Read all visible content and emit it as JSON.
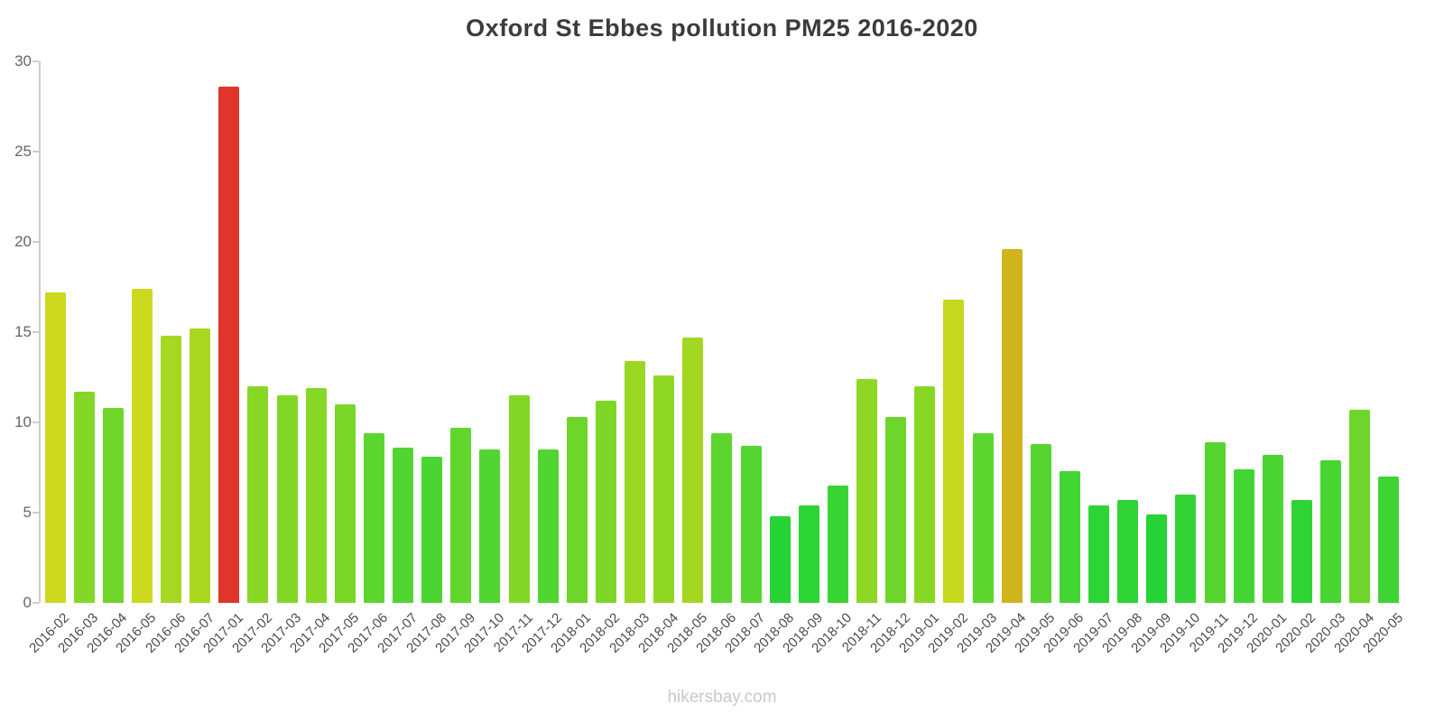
{
  "page": {
    "title": "Oxford St Ebbes pollution PM25 2016-2020",
    "watermark": "hikersbay.com"
  },
  "chart_data": {
    "type": "bar",
    "title": "Oxford St Ebbes pollution PM25 2016-2020",
    "xlabel": "",
    "ylabel": "",
    "ylim": [
      0,
      30
    ],
    "yticks": [
      0,
      5,
      10,
      15,
      20,
      25,
      30
    ],
    "grid": false,
    "legend": false,
    "categories": [
      "2016-02",
      "2016-03",
      "2016-04",
      "2016-05",
      "2016-06",
      "2016-07",
      "2017-01",
      "2017-02",
      "2017-03",
      "2017-04",
      "2017-05",
      "2017-06",
      "2017-07",
      "2017-08",
      "2017-09",
      "2017-10",
      "2017-11",
      "2017-12",
      "2018-01",
      "2018-02",
      "2018-03",
      "2018-04",
      "2018-05",
      "2018-06",
      "2018-07",
      "2018-08",
      "2018-09",
      "2018-10",
      "2018-11",
      "2018-12",
      "2019-01",
      "2019-02",
      "2019-03",
      "2019-04",
      "2019-05",
      "2019-06",
      "2019-07",
      "2019-08",
      "2019-09",
      "2019-10",
      "2019-11",
      "2019-12",
      "2020-01",
      "2020-02",
      "2020-03",
      "2020-04",
      "2020-05"
    ],
    "values": [
      17.2,
      11.7,
      10.8,
      17.4,
      14.8,
      15.2,
      28.6,
      12.0,
      11.5,
      11.9,
      11.0,
      9.4,
      8.6,
      8.1,
      9.7,
      8.5,
      11.5,
      8.5,
      10.3,
      11.2,
      13.4,
      12.6,
      14.7,
      9.4,
      8.7,
      4.8,
      5.4,
      6.5,
      12.4,
      10.3,
      12.0,
      16.8,
      9.4,
      19.6,
      8.8,
      7.3,
      5.4,
      5.7,
      4.9,
      6.0,
      8.9,
      7.4,
      8.2,
      5.7,
      7.9,
      10.7,
      7.0
    ],
    "bar_colors": [
      "#ccd91e",
      "#84d726",
      "#70d62a",
      "#ccd91e",
      "#a6d721",
      "#aad71f",
      "#e0352b",
      "#88d725",
      "#82d727",
      "#86d726",
      "#7ad728",
      "#5cd62e",
      "#52d531",
      "#4ad532",
      "#62d62d",
      "#50d531",
      "#82d727",
      "#50d531",
      "#6ed62b",
      "#7ed727",
      "#9ad722",
      "#90d723",
      "#a4d721",
      "#5cd62e",
      "#54d530",
      "#26d436",
      "#2cd435",
      "#38d434",
      "#8ed724",
      "#6ed62b",
      "#88d725",
      "#c6d91e",
      "#5cd62e",
      "#d0b41b",
      "#55d530",
      "#42d533",
      "#2cd435",
      "#2ed435",
      "#26d436",
      "#32d435",
      "#56d530",
      "#42d533",
      "#4cd532",
      "#2ed435",
      "#48d532",
      "#6ed62b",
      "#3ed433"
    ],
    "accent_colors": {
      "outlier_red": "#e0352b",
      "high_mustard": "#d0b41b",
      "low_green": "#26d436"
    }
  }
}
